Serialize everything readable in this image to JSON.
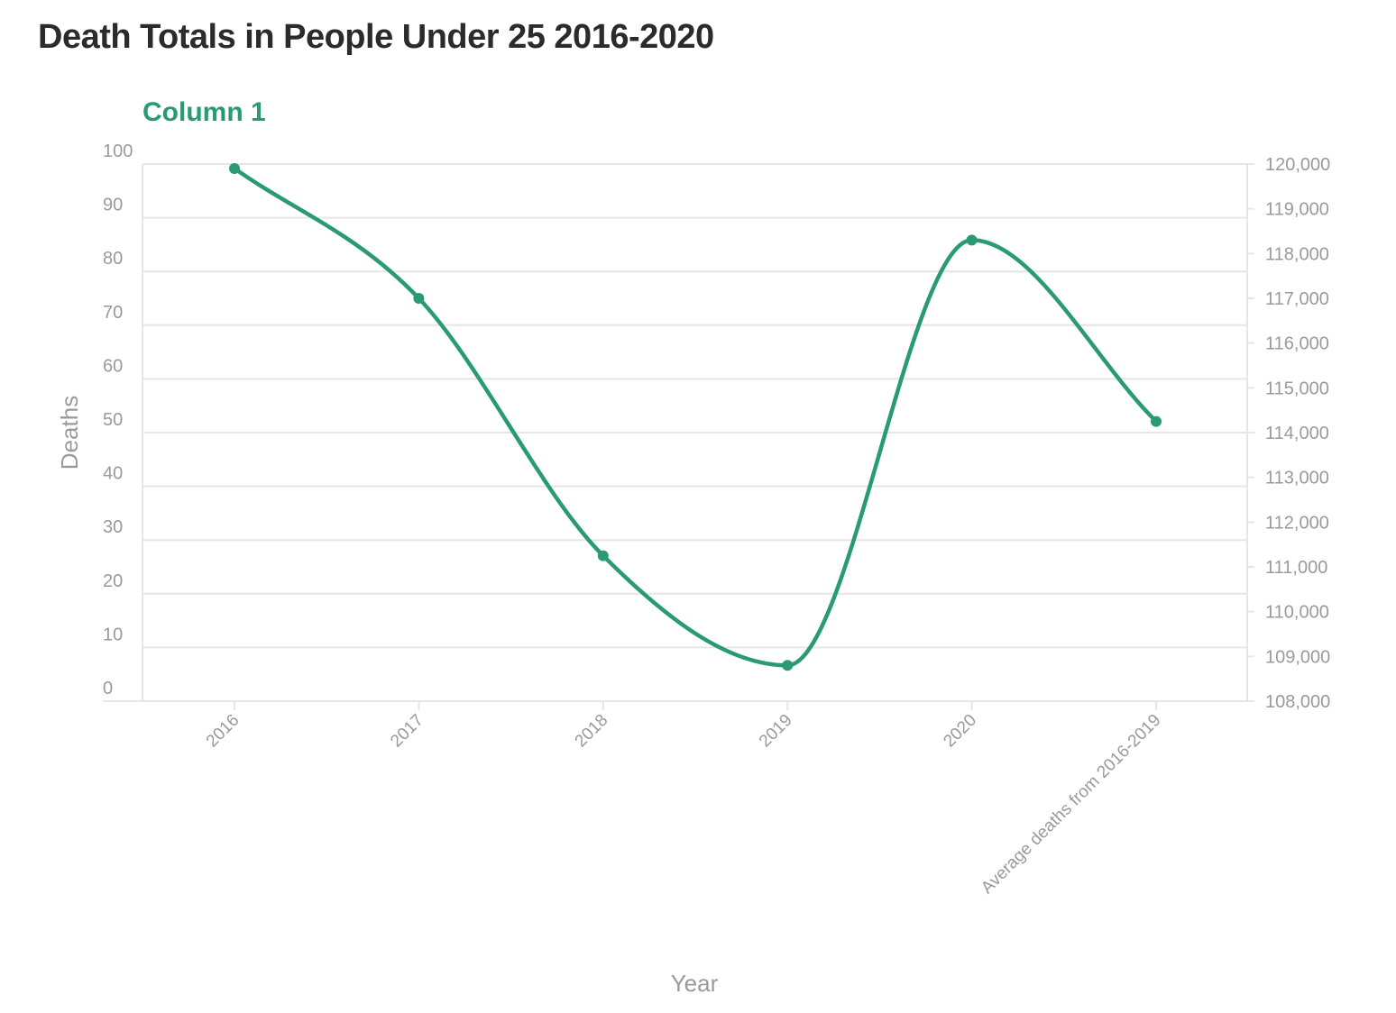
{
  "title": "Death Totals in People Under 25 2016-2020",
  "chart_data": {
    "type": "line",
    "series_label": "Column 1",
    "categories": [
      "2016",
      "2017",
      "2018",
      "2019",
      "2020",
      "Average deaths from 2016-2019"
    ],
    "series": [
      {
        "name": "Column 1",
        "values": [
          119900,
          117000,
          111250,
          108800,
          118300,
          114250
        ]
      }
    ],
    "xlabel": "Year",
    "ylabel": "Deaths",
    "left_axis": {
      "ticks": [
        0,
        10,
        20,
        30,
        40,
        50,
        60,
        70,
        80,
        90,
        100
      ],
      "labels": [
        "0",
        "10",
        "20",
        "30",
        "40",
        "50",
        "60",
        "70",
        "80",
        "90",
        "100"
      ]
    },
    "right_axis": {
      "ylim": [
        108000,
        120000
      ],
      "ticks": [
        108000,
        109000,
        110000,
        111000,
        112000,
        113000,
        114000,
        115000,
        116000,
        117000,
        118000,
        119000,
        120000
      ],
      "labels": [
        "108,000",
        "109,000",
        "110,000",
        "111,000",
        "112,000",
        "113,000",
        "114,000",
        "115,000",
        "116,000",
        "117,000",
        "118,000",
        "119,000",
        "120,000"
      ]
    },
    "grid": true,
    "color": "#2a9a76"
  }
}
